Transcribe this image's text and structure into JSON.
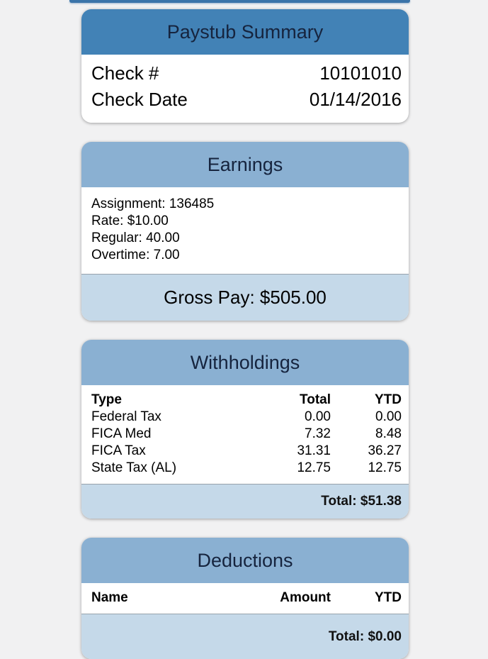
{
  "theme": {
    "page_background": "#f1f1f2",
    "primary_header_blue": "#4282b6",
    "section_header_blue": "#8ab0d2",
    "footer_blue": "#c5d9e9",
    "title_text_color": "#16243e"
  },
  "paystub_summary": {
    "title": "Paystub Summary",
    "rows": [
      {
        "label": "Check #",
        "value": "10101010"
      },
      {
        "label": "Check Date",
        "value": "01/14/2016"
      }
    ]
  },
  "earnings": {
    "title": "Earnings",
    "lines": [
      "Assignment: 136485",
      "Rate: $10.00",
      "Regular: 40.00",
      "Overtime: 7.00"
    ],
    "gross_pay": "Gross Pay: $505.00"
  },
  "withholdings": {
    "title": "Withholdings",
    "columns": [
      "Type",
      "Total",
      "YTD"
    ],
    "rows": [
      {
        "type": "Federal Tax",
        "total": "0.00",
        "ytd": "0.00"
      },
      {
        "type": "FICA Med",
        "total": "7.32",
        "ytd": "8.48"
      },
      {
        "type": "FICA Tax",
        "total": "31.31",
        "ytd": "36.27"
      },
      {
        "type": "State Tax (AL)",
        "total": "12.75",
        "ytd": "12.75"
      }
    ],
    "total": "Total: $51.38"
  },
  "deductions": {
    "title": "Deductions",
    "columns": [
      "Name",
      "Amount",
      "YTD"
    ],
    "rows": [],
    "total": "Total: $0.00"
  }
}
